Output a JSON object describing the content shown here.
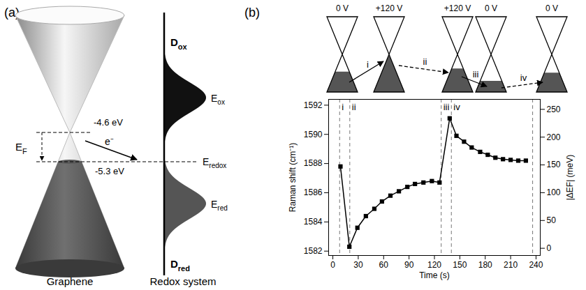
{
  "diagram": {
    "panel_a": {
      "letter": "(a)",
      "graphene_label": "Graphene",
      "redox_label": "Redox system",
      "energy_top": "-4.6 eV",
      "energy_bottom": "-5.3 eV",
      "fermi": "EF",
      "electron": "e⁻",
      "redox_level": "Eredox",
      "ox_distribution": "Dox",
      "ox_level": "Eox",
      "red_level": "Ered",
      "red_distribution": "Dred"
    },
    "panel_b": {
      "letter": "(b)",
      "states": [
        "0 V",
        "+120 V",
        "+120 V",
        "0 V",
        "0 V"
      ],
      "transitions": [
        {
          "label": "i",
          "line_style": "solid"
        },
        {
          "label": "ii",
          "line_style": "dashed"
        },
        {
          "label": "iii",
          "line_style": "solid"
        },
        {
          "label": "iv",
          "line_style": "dashed"
        }
      ]
    }
  },
  "chart_data": {
    "type": "line",
    "xlabel": "Time (s)",
    "ylabel": "Raman shift (cm⁻¹)",
    "y2label": "|ΔEF| (meV)",
    "x": [
      9,
      19.5,
      29,
      39,
      49,
      58,
      68,
      78,
      88,
      97,
      107,
      117,
      126,
      138,
      146,
      155,
      164,
      174,
      183,
      192,
      201,
      210,
      219,
      228
    ],
    "values": [
      1587.8,
      1582.3,
      1583.6,
      1584.4,
      1584.9,
      1585.4,
      1585.8,
      1586.1,
      1586.4,
      1586.6,
      1586.7,
      1586.8,
      1586.7,
      1591.1,
      1589.9,
      1589.5,
      1589.1,
      1588.8,
      1588.6,
      1588.4,
      1588.3,
      1588.25,
      1588.2,
      1588.2
    ],
    "color": "#000000",
    "marker": "square",
    "line_style": "solid",
    "xlim": [
      -5,
      245
    ],
    "xticks": [
      0,
      30,
      60,
      90,
      120,
      150,
      180,
      210,
      240
    ],
    "ylim": [
      1581.7,
      1592.4
    ],
    "yticks": [
      1582,
      1584,
      1586,
      1588,
      1590,
      1592
    ],
    "y2lim": [
      -13,
      268
    ],
    "y2ticks": [
      0,
      50,
      100,
      150,
      200,
      250
    ],
    "regions": {
      "boundaries": [
        8,
        20,
        128,
        140,
        236
      ],
      "labels": [
        "i",
        "ii",
        "iii",
        "iv"
      ]
    },
    "grid": false
  }
}
